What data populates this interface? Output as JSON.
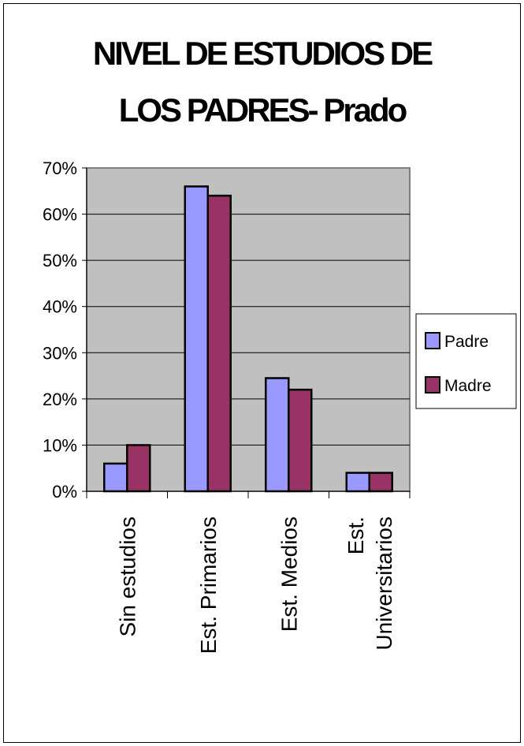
{
  "chart_data": {
    "type": "bar",
    "title_lines": [
      "NIVEL DE ESTUDIOS DE",
      "LOS PADRES- Prado"
    ],
    "categories": [
      [
        "Sin estudios"
      ],
      [
        "Est. Primarios"
      ],
      [
        "Est. Medios"
      ],
      [
        "Est.",
        "Universitarios"
      ]
    ],
    "series": [
      {
        "name": "Padre",
        "values": [
          6,
          66,
          24.5,
          4
        ],
        "color": "#9999ff"
      },
      {
        "name": "Madre",
        "values": [
          10,
          64,
          22,
          4
        ],
        "color": "#993366"
      }
    ],
    "yticks": [
      "0%",
      "10%",
      "20%",
      "30%",
      "40%",
      "50%",
      "60%",
      "70%"
    ],
    "ylim": [
      0,
      70
    ],
    "grid": true,
    "plot_background": "#c0c0c0",
    "legend_position": "right"
  }
}
